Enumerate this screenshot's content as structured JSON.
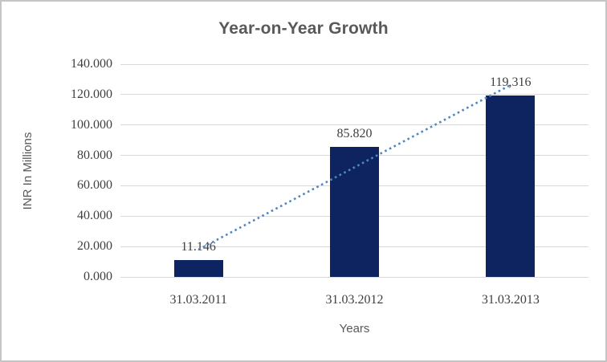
{
  "window": {
    "background": "#FFFFFF",
    "border_color": "#C5C5C5"
  },
  "chart_data": {
    "type": "bar",
    "title": "Year-on-Year Growth",
    "xlabel": "Years",
    "ylabel": "INR In Millions",
    "categories": [
      "31.03.2011",
      "31.03.2012",
      "31.03.2013"
    ],
    "values": [
      11.146,
      85.82,
      119.316
    ],
    "data_labels": [
      "11.146",
      "85.820",
      "119,316"
    ],
    "ylim": [
      0,
      140
    ],
    "ytick_step": 20,
    "ytick_labels": [
      "0.000",
      "20.000",
      "40.000",
      "60.000",
      "80.000",
      "100.000",
      "120.000",
      "140.000"
    ],
    "grid": true,
    "legend": "none",
    "trendline": {
      "type": "linear",
      "style": "dotted",
      "start_value": 18.0,
      "end_value": 126.3
    },
    "colors": {
      "bar": "#0E2460",
      "trendline": "#4F87C5",
      "gridline": "#D9D9D9",
      "title_text": "#595959",
      "axis_title_text": "#595959",
      "tick_text": "#3F3F3F",
      "data_label_text": "#3F3F3F"
    }
  }
}
